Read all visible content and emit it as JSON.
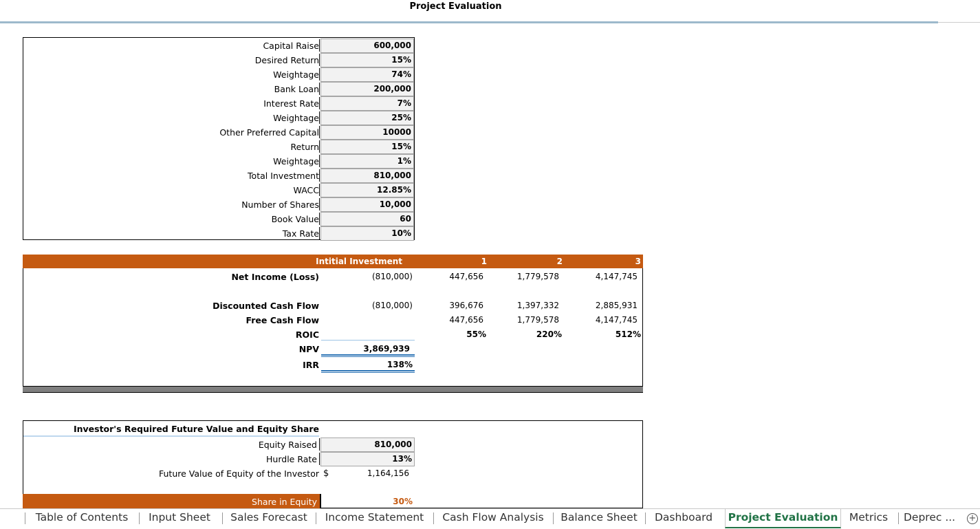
{
  "sheet_title": "Project Evaluation",
  "capital": {
    "rows": [
      {
        "label": "Capital Raise",
        "value": "600,000"
      },
      {
        "label": "Desired Return",
        "value": "15%"
      },
      {
        "label": "Weightage",
        "value": "74%"
      },
      {
        "label": "Bank Loan",
        "value": "200,000"
      },
      {
        "label": "Interest Rate",
        "value": "7%"
      },
      {
        "label": "Weightage",
        "value": "25%"
      },
      {
        "label": "Other Preferred Capital",
        "value": "10000"
      },
      {
        "label": "Return",
        "value": "15%"
      },
      {
        "label": "Weightage",
        "value": "1%"
      },
      {
        "label": "Total Investment",
        "value": "810,000"
      },
      {
        "label": "WACC",
        "value": "12.85%"
      },
      {
        "label": "Number of Shares",
        "value": "10,000"
      },
      {
        "label": "Book Value",
        "value": "60"
      },
      {
        "label": "Tax Rate",
        "value": "10%"
      }
    ]
  },
  "evaluation": {
    "headers": [
      "Intitial Investment",
      "1",
      "2",
      "3"
    ],
    "net_income": {
      "label": "Net Income (Loss)",
      "values": [
        "(810,000)",
        "447,656",
        "1,779,578",
        "4,147,745"
      ]
    },
    "dcf": {
      "label": "Discounted Cash Flow",
      "values": [
        "(810,000)",
        "396,676",
        "1,397,332",
        "2,885,931"
      ]
    },
    "fcf": {
      "label": "Free Cash Flow",
      "values": [
        "447,656",
        "1,779,578",
        "4,147,745"
      ]
    },
    "roic": {
      "label": "ROIC",
      "values": [
        "55%",
        "220%",
        "512%"
      ]
    },
    "npv": {
      "label": "NPV",
      "value": "3,869,939"
    },
    "irr": {
      "label": "IRR",
      "value": "138%"
    }
  },
  "investor": {
    "title": "Investor's Required Future Value and Equity Share",
    "equity_raised": {
      "label": "Equity Raised",
      "value": "810,000"
    },
    "hurdle_rate": {
      "label": "Hurdle Rate",
      "value": "13%"
    },
    "future_value": {
      "label": "Future Value of Equity of the Investor",
      "currency": "$",
      "value": "1,164,156"
    },
    "share": {
      "label": "Share in Equity",
      "value": "30%"
    }
  },
  "tabs": [
    {
      "label": "Table of Contents"
    },
    {
      "label": "Input Sheet"
    },
    {
      "label": "Sales Forecast"
    },
    {
      "label": "Income Statement"
    },
    {
      "label": "Cash Flow Analysis"
    },
    {
      "label": "Balance Sheet"
    },
    {
      "label": "Dashboard"
    },
    {
      "label": "Project Evaluation",
      "active": true
    },
    {
      "label": "Metrics"
    },
    {
      "label": "Deprec ..."
    }
  ],
  "add_sheet_icon": "plus-circle-icon",
  "colors": {
    "orange_header": "#c55a11",
    "active_tab": "#217346",
    "input_cell": "#f2f2f2"
  }
}
